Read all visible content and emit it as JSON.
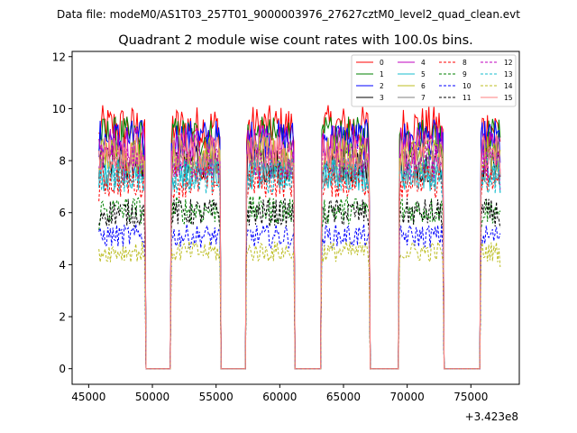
{
  "header": {
    "data_file": "Data file: modeM0/AS1T03_257T01_9000003976_27627cztM0_level2_quad_clean.evt"
  },
  "chart_data": {
    "type": "line",
    "title": "Quadrant 2 module wise count rates with 100.0s bins.",
    "xlabel": "",
    "ylabel": "",
    "x_offset_label": "+3.423e8",
    "xlim": [
      43700,
      78800
    ],
    "ylim": [
      -0.6,
      12.2
    ],
    "x_ticks": [
      45000,
      50000,
      55000,
      60000,
      65000,
      70000,
      75000
    ],
    "x_tick_labels": [
      "45000",
      "50000",
      "55000",
      "60000",
      "65000",
      "70000",
      "75000"
    ],
    "y_ticks": [
      0,
      2,
      4,
      6,
      8,
      10,
      12
    ],
    "y_tick_labels": [
      "0",
      "2",
      "4",
      "6",
      "8",
      "10",
      "12"
    ],
    "grid": false,
    "legend_position": "top-right",
    "segments": [
      {
        "start": 45800,
        "end": 49400
      },
      {
        "start": 51500,
        "end": 55300
      },
      {
        "start": 57400,
        "end": 61100
      },
      {
        "start": 63300,
        "end": 67000
      },
      {
        "start": 69400,
        "end": 72800
      },
      {
        "start": 75800,
        "end": 77300
      }
    ],
    "bin_seconds": 100,
    "series": [
      {
        "name": "0",
        "color": "#ff0000",
        "style": "solid",
        "mean": 9.3
      },
      {
        "name": "1",
        "color": "#008000",
        "style": "solid",
        "mean": 8.9
      },
      {
        "name": "2",
        "color": "#0000ff",
        "style": "solid",
        "mean": 8.8
      },
      {
        "name": "3",
        "color": "#000000",
        "style": "solid",
        "mean": 7.9
      },
      {
        "name": "4",
        "color": "#bf00bf",
        "style": "solid",
        "mean": 8.6
      },
      {
        "name": "5",
        "color": "#17becf",
        "style": "solid",
        "mean": 7.5
      },
      {
        "name": "6",
        "color": "#bcbd22",
        "style": "solid",
        "mean": 8.2
      },
      {
        "name": "7",
        "color": "#7f7f7f",
        "style": "solid",
        "mean": 7.7
      },
      {
        "name": "8",
        "color": "#ff0000",
        "style": "dashed",
        "mean": 7.2
      },
      {
        "name": "9",
        "color": "#008000",
        "style": "dashed",
        "mean": 6.1
      },
      {
        "name": "10",
        "color": "#0000ff",
        "style": "dashed",
        "mean": 5.1
      },
      {
        "name": "11",
        "color": "#000000",
        "style": "dashed",
        "mean": 6.0
      },
      {
        "name": "12",
        "color": "#bf00bf",
        "style": "dashed",
        "mean": 7.9
      },
      {
        "name": "13",
        "color": "#17becf",
        "style": "dashed",
        "mean": 7.4
      },
      {
        "name": "14",
        "color": "#bcbd22",
        "style": "dashed",
        "mean": 4.5
      },
      {
        "name": "15",
        "color": "#ff7f7f",
        "style": "solid",
        "mean": 8.3
      }
    ]
  }
}
